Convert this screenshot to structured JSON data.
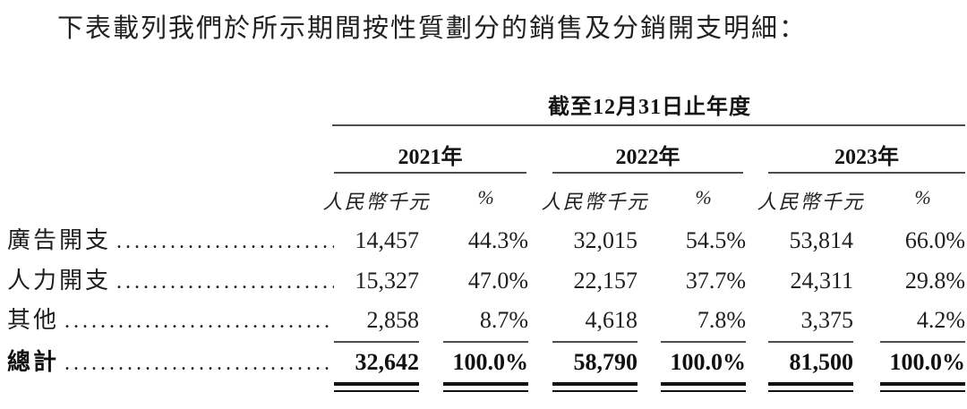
{
  "page": {
    "intro_text": "下表載列我們於所示期間按性質劃分的銷售及分銷開支明細："
  },
  "table": {
    "period_header": "截至12月31日止年度",
    "year_groups": [
      {
        "year": "2021年",
        "amount_header": "人民幣千元",
        "pct_header": "%"
      },
      {
        "year": "2022年",
        "amount_header": "人民幣千元",
        "pct_header": "%"
      },
      {
        "year": "2023年",
        "amount_header": "人民幣千元",
        "pct_header": "%"
      }
    ],
    "rows": [
      {
        "label": "廣告開支",
        "y2021": {
          "amount": "14,457",
          "pct": "44.3%"
        },
        "y2022": {
          "amount": "32,015",
          "pct": "54.5%"
        },
        "y2023": {
          "amount": "53,814",
          "pct": "66.0%"
        }
      },
      {
        "label": "人力開支",
        "y2021": {
          "amount": "15,327",
          "pct": "47.0%"
        },
        "y2022": {
          "amount": "22,157",
          "pct": "37.7%"
        },
        "y2023": {
          "amount": "24,311",
          "pct": "29.8%"
        }
      },
      {
        "label": "其他",
        "y2021": {
          "amount": "2,858",
          "pct": "8.7%"
        },
        "y2022": {
          "amount": "4,618",
          "pct": "7.8%"
        },
        "y2023": {
          "amount": "3,375",
          "pct": "4.2%"
        }
      }
    ],
    "total_row": {
      "label": "總計",
      "y2021": {
        "amount": "32,642",
        "pct": "100.0%"
      },
      "y2022": {
        "amount": "58,790",
        "pct": "100.0%"
      },
      "y2023": {
        "amount": "81,500",
        "pct": "100.0%"
      }
    }
  },
  "colors": {
    "text": "#1e1e1e",
    "rule_gray": "#4c4d4f",
    "rule_black": "#121212",
    "background": "#ffffff"
  }
}
